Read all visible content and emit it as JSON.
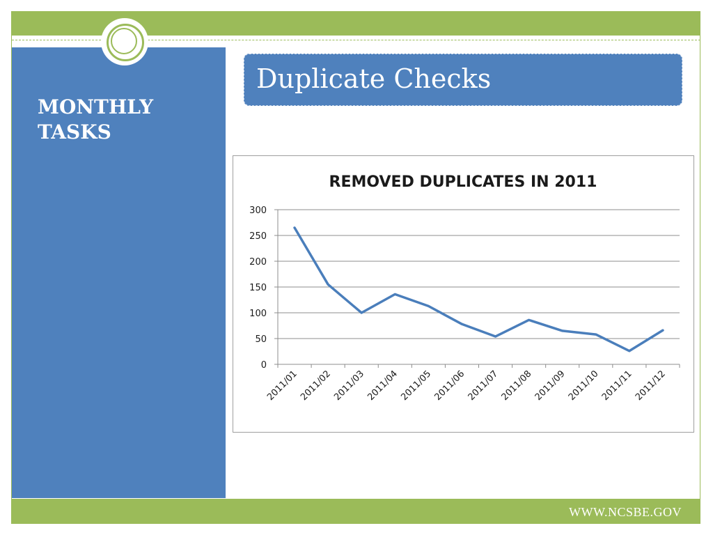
{
  "slide": {
    "section_title": "MONTHLY TASKS",
    "title": "Duplicate Checks",
    "footer_url": "WWW.NCSBE.GOV"
  },
  "colors": {
    "green": "#9bbb59",
    "blue": "#4f81bd",
    "line": "#4a7ebb"
  },
  "chart_data": {
    "type": "line",
    "title": "REMOVED DUPLICATES IN 2011",
    "xlabel": "",
    "ylabel": "",
    "ylim": [
      0,
      300
    ],
    "yticks": [
      0,
      50,
      100,
      150,
      200,
      250,
      300
    ],
    "categories": [
      "2011/01",
      "2011/02",
      "2011/03",
      "2011/04",
      "2011/05",
      "2011/06",
      "2011/07",
      "2011/08",
      "2011/09",
      "2011/10",
      "2011/11",
      "2011/12"
    ],
    "series": [
      {
        "name": "Removed duplicates",
        "values": [
          265,
          155,
          100,
          136,
          113,
          78,
          54,
          86,
          65,
          58,
          26,
          66
        ]
      }
    ],
    "grid": true,
    "legend": "none"
  }
}
